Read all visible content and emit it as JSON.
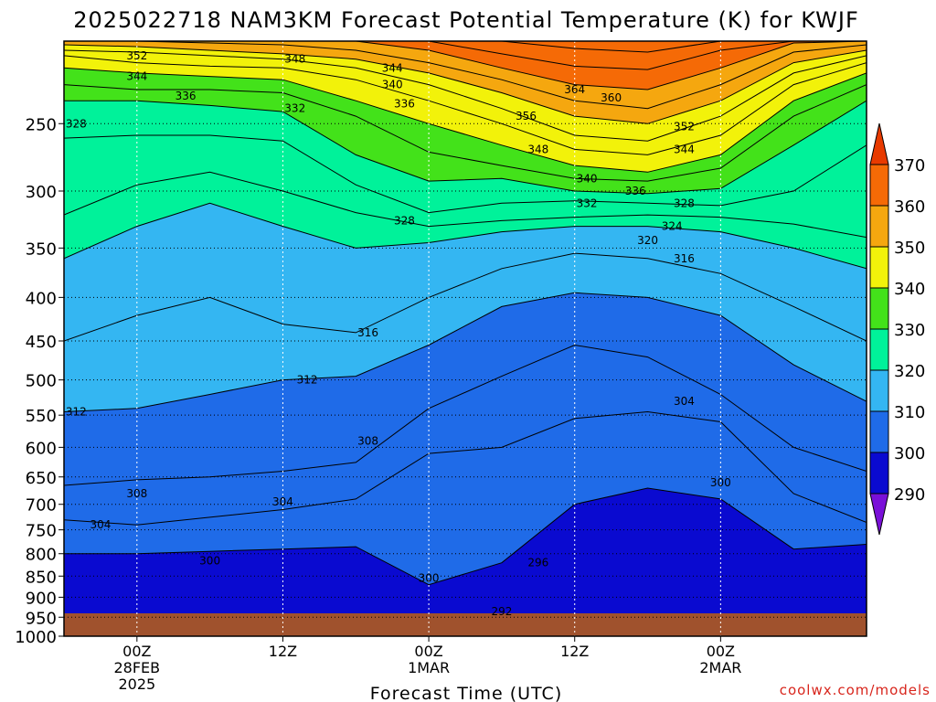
{
  "watermark": "coolwx.com/models",
  "chart_data": {
    "type": "heatmap",
    "title": "2025022718 NAM3KM Forecast Potential Temperature (K) for KWJF",
    "xlabel": "Forecast Time (UTC)",
    "ylabel": "",
    "y_scale": "log (pressure, hPa, inverted)",
    "ylim": [
      1000,
      200
    ],
    "xlim": [
      "2025-02-27T18Z",
      "2025-03-02T12Z"
    ],
    "grid": true,
    "ytick_labels": [
      "250",
      "300",
      "350",
      "400",
      "450",
      "500",
      "550",
      "600",
      "650",
      "700",
      "750",
      "800",
      "850",
      "900",
      "950",
      "1000"
    ],
    "ytick_values": [
      250,
      300,
      350,
      400,
      450,
      500,
      550,
      600,
      650,
      700,
      750,
      800,
      850,
      900,
      950,
      1000
    ],
    "xtick_values": [
      "2025-02-28T00Z",
      "2025-02-28T12Z",
      "2025-03-01T00Z",
      "2025-03-01T12Z",
      "2025-03-02T00Z"
    ],
    "xtick_labels": [
      {
        "line1": "00Z",
        "line2": "28FEB",
        "line3": "2025"
      },
      {
        "line1": "12Z",
        "line2": "",
        "line3": ""
      },
      {
        "line1": "00Z",
        "line2": "1MAR",
        "line3": ""
      },
      {
        "line1": "12Z",
        "line2": "",
        "line3": ""
      },
      {
        "line1": "00Z",
        "line2": "2MAR",
        "line3": ""
      }
    ],
    "colorbar": {
      "levels": [
        290,
        300,
        310,
        320,
        330,
        340,
        350,
        360,
        370
      ],
      "labels": [
        "290",
        "300",
        "310",
        "320",
        "330",
        "340",
        "350",
        "360",
        "370"
      ],
      "colors": [
        "#7a10d8",
        "#0a0ad0",
        "#1f6be8",
        "#34b6f2",
        "#00f29a",
        "#43e21a",
        "#f2f20a",
        "#f5a70f",
        "#f56a06",
        "#e83a00"
      ]
    },
    "surface_color": "#a0522d",
    "surface_pressure": 940,
    "times": [
      "2025-02-27T18Z",
      "2025-02-28T00Z",
      "2025-02-28T06Z",
      "2025-02-28T12Z",
      "2025-02-28T18Z",
      "2025-03-01T00Z",
      "2025-03-01T06Z",
      "2025-03-01T12Z",
      "2025-03-01T18Z",
      "2025-03-02T00Z",
      "2025-03-02T06Z",
      "2025-03-02T12Z"
    ],
    "isentropes": [
      {
        "theta": 300,
        "p": [
          800,
          800,
          795,
          790,
          785,
          870,
          820,
          700,
          670,
          690,
          790,
          780
        ]
      },
      {
        "theta": 304,
        "p": [
          730,
          740,
          725,
          710,
          690,
          610,
          600,
          555,
          545,
          560,
          680,
          735
        ]
      },
      {
        "theta": 308,
        "p": [
          665,
          655,
          650,
          640,
          625,
          540,
          495,
          455,
          470,
          520,
          600,
          640
        ]
      },
      {
        "theta": 312,
        "p": [
          545,
          540,
          520,
          500,
          495,
          455,
          410,
          395,
          400,
          420,
          480,
          530
        ]
      },
      {
        "theta": 316,
        "p": [
          450,
          420,
          400,
          430,
          440,
          400,
          370,
          355,
          360,
          375,
          410,
          450
        ]
      },
      {
        "theta": 320,
        "p": [
          360,
          330,
          310,
          330,
          350,
          345,
          335,
          330,
          330,
          335,
          350,
          370
        ]
      },
      {
        "theta": 324,
        "p": [
          320,
          295,
          285,
          300,
          318,
          330,
          325,
          322,
          320,
          322,
          328,
          340
        ]
      },
      {
        "theta": 328,
        "p": [
          260,
          258,
          258,
          262,
          295,
          318,
          310,
          308,
          310,
          312,
          300,
          265
        ]
      },
      {
        "theta": 332,
        "p": [
          235,
          235,
          238,
          242,
          272,
          292,
          290,
          300,
          302,
          298,
          265,
          235
        ]
      },
      {
        "theta": 336,
        "p": [
          225,
          228,
          228,
          230,
          245,
          270,
          280,
          290,
          292,
          282,
          245,
          225
        ]
      },
      {
        "theta": 340,
        "p": [
          215,
          218,
          220,
          222,
          235,
          250,
          265,
          280,
          285,
          272,
          235,
          218
        ]
      },
      {
        "theta": 344,
        "p": [
          208,
          212,
          214,
          215,
          222,
          235,
          250,
          268,
          272,
          258,
          225,
          212
        ]
      },
      {
        "theta": 348,
        "p": [
          205,
          206,
          208,
          210,
          215,
          225,
          240,
          258,
          262,
          245,
          218,
          208
        ]
      },
      {
        "theta": 352,
        "p": [
          202,
          203,
          205,
          207,
          210,
          218,
          230,
          245,
          250,
          235,
          212,
          205
        ]
      },
      {
        "theta": 356,
        "p": [
          200,
          200,
          201,
          202,
          205,
          212,
          222,
          235,
          240,
          225,
          206,
          202
        ]
      },
      {
        "theta": 360,
        "p": [
          199,
          199,
          199,
          199,
          200,
          205,
          215,
          225,
          228,
          215,
          201,
          199
        ]
      },
      {
        "theta": 364,
        "p": [
          198,
          198,
          198,
          198,
          198,
          200,
          207,
          214,
          216,
          205,
          198,
          198
        ]
      },
      {
        "theta": 368,
        "p": [
          197,
          197,
          197,
          197,
          197,
          197,
          200,
          204,
          206,
          198,
          197,
          197
        ]
      }
    ],
    "contour_labels": [
      {
        "text": "352",
        "t": "2025-02-28T00Z",
        "p": 208
      },
      {
        "text": "344",
        "t": "2025-02-28T00Z",
        "p": 220
      },
      {
        "text": "348",
        "t": "2025-02-28T13Z",
        "p": 210
      },
      {
        "text": "344",
        "t": "2025-02-28T21Z",
        "p": 215
      },
      {
        "text": "340",
        "t": "2025-02-28T21Z",
        "p": 225
      },
      {
        "text": "336",
        "t": "2025-02-28T22Z",
        "p": 237
      },
      {
        "text": "336",
        "t": "2025-02-28T04Z",
        "p": 232
      },
      {
        "text": "332",
        "t": "2025-02-28T13Z",
        "p": 240
      },
      {
        "text": "328",
        "t": "2025-02-27T19Z",
        "p": 250
      },
      {
        "text": "364",
        "t": "2025-03-01T12Z",
        "p": 228
      },
      {
        "text": "360",
        "t": "2025-03-01T15Z",
        "p": 233
      },
      {
        "text": "356",
        "t": "2025-03-01T08Z",
        "p": 245
      },
      {
        "text": "352",
        "t": "2025-03-01T21Z",
        "p": 252
      },
      {
        "text": "348",
        "t": "2025-03-01T09Z",
        "p": 268
      },
      {
        "text": "344",
        "t": "2025-03-01T21Z",
        "p": 268
      },
      {
        "text": "340",
        "t": "2025-03-01T13Z",
        "p": 290
      },
      {
        "text": "336",
        "t": "2025-03-01T17Z",
        "p": 300
      },
      {
        "text": "332",
        "t": "2025-03-01T13Z",
        "p": 310
      },
      {
        "text": "328",
        "t": "2025-03-01T21Z",
        "p": 310
      },
      {
        "text": "328",
        "t": "2025-02-28T22Z",
        "p": 325
      },
      {
        "text": "324",
        "t": "2025-03-01T20Z",
        "p": 330
      },
      {
        "text": "320",
        "t": "2025-03-01T18Z",
        "p": 343
      },
      {
        "text": "316",
        "t": "2025-03-01T21Z",
        "p": 360
      },
      {
        "text": "316",
        "t": "2025-02-28T19Z",
        "p": 440
      },
      {
        "text": "312",
        "t": "2025-02-28T14Z",
        "p": 500
      },
      {
        "text": "312",
        "t": "2025-02-27T19Z",
        "p": 545
      },
      {
        "text": "304",
        "t": "2025-03-01T21Z",
        "p": 530
      },
      {
        "text": "308",
        "t": "2025-02-28T19Z",
        "p": 590
      },
      {
        "text": "308",
        "t": "2025-02-28T00Z",
        "p": 680
      },
      {
        "text": "304",
        "t": "2025-02-28T12Z",
        "p": 695
      },
      {
        "text": "304",
        "t": "2025-02-27T21Z",
        "p": 740
      },
      {
        "text": "300",
        "t": "2025-03-02T00Z",
        "p": 660
      },
      {
        "text": "300",
        "t": "2025-02-28T06Z",
        "p": 815
      },
      {
        "text": "300",
        "t": "2025-03-01T00Z",
        "p": 855
      },
      {
        "text": "296",
        "t": "2025-03-01T09Z",
        "p": 820
      },
      {
        "text": "292",
        "t": "2025-03-01T06Z",
        "p": 935
      }
    ]
  }
}
